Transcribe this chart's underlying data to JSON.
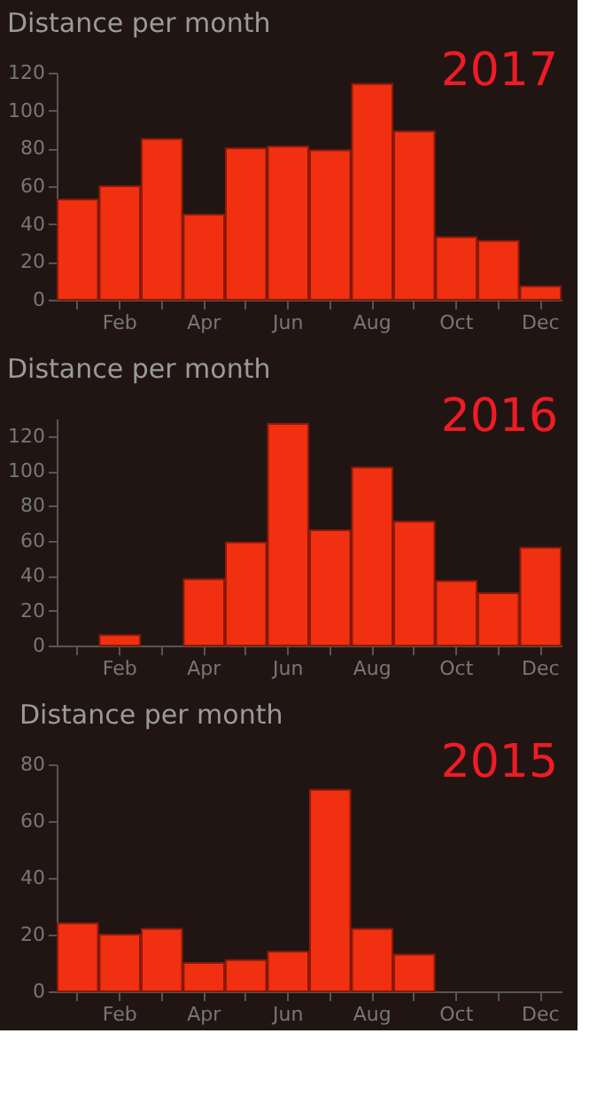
{
  "chart_data": [
    {
      "type": "bar",
      "title": "Distance per month",
      "annotations": [
        "2017"
      ],
      "categories": [
        null,
        "Feb",
        null,
        "Apr",
        null,
        "Jun",
        null,
        "Aug",
        null,
        "Oct",
        null,
        "Dec"
      ],
      "values": [
        53,
        60,
        85,
        45,
        80,
        81,
        79,
        114,
        89,
        33,
        31,
        7
      ],
      "color": "#f03010",
      "ylim": [
        0,
        120
      ],
      "yticks": [
        0,
        20,
        40,
        60,
        80,
        100,
        120
      ]
    },
    {
      "type": "bar",
      "title": "Distance per month",
      "annotations": [
        "2016"
      ],
      "categories": [
        null,
        "Feb",
        null,
        "Apr",
        null,
        "Jun",
        null,
        "Aug",
        null,
        "Oct",
        null,
        "Dec"
      ],
      "values": [
        null,
        6,
        null,
        38,
        59,
        127,
        66,
        102,
        71,
        37,
        30,
        56
      ],
      "color": "#f03010",
      "ylim": [
        0,
        130
      ],
      "yticks": [
        0,
        20,
        40,
        60,
        80,
        100,
        120
      ]
    },
    {
      "type": "bar",
      "title": "Distance per month",
      "annotations": [
        "2015"
      ],
      "categories": [
        null,
        "Feb",
        null,
        "Apr",
        null,
        "Jun",
        null,
        "Aug",
        null,
        "Oct",
        null,
        "Dec"
      ],
      "values": [
        24,
        20,
        22,
        10,
        11,
        14,
        71,
        22,
        13,
        null,
        null,
        null
      ],
      "color": "#f03010",
      "ylim": [
        0,
        80
      ],
      "yticks": [
        0,
        20,
        40,
        60,
        80
      ]
    }
  ]
}
